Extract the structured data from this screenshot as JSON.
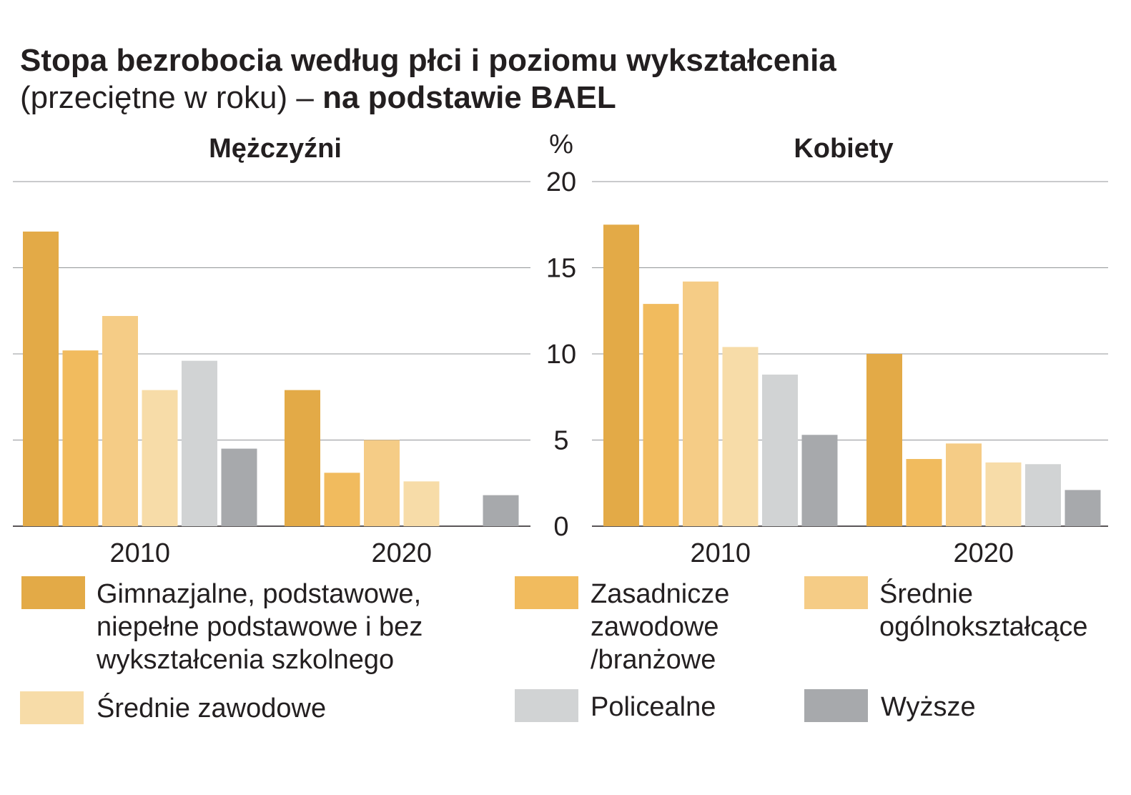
{
  "title": "Stopa bezrobocia według płci i poziomu wykształcenia",
  "subtitle_plain": "(przeciętne w roku) – ",
  "subtitle_bold": "na podstawie BAEL",
  "chart_data": {
    "type": "bar",
    "y_unit": "%",
    "ylim": [
      0,
      20
    ],
    "yticks": [
      "0",
      "5",
      "10",
      "15",
      "20"
    ],
    "grid": true,
    "legend_position": "bottom",
    "panels": [
      {
        "title": "Mężczyźni",
        "categories": [
          "2010",
          "2020"
        ],
        "series": [
          {
            "name": "Gimnazjalne, podstawowe, niepełne podstawowe i bez wykształcenia szkolnego",
            "values": [
              17.1,
              7.9
            ]
          },
          {
            "name": "Zasadnicze zawodowe /branżowe",
            "values": [
              10.2,
              3.1
            ]
          },
          {
            "name": "Średnie ogólnokształcące",
            "values": [
              12.2,
              5.0
            ]
          },
          {
            "name": "Średnie zawodowe",
            "values": [
              7.9,
              2.6
            ]
          },
          {
            "name": "Policealne",
            "values": [
              9.6,
              0
            ]
          },
          {
            "name": "Wyższe",
            "values": [
              4.5,
              1.8
            ]
          }
        ]
      },
      {
        "title": "Kobiety",
        "categories": [
          "2010",
          "2020"
        ],
        "series": [
          {
            "name": "Gimnazjalne, podstawowe, niepełne podstawowe i bez wykształcenia szkolnego",
            "values": [
              17.5,
              10.0
            ]
          },
          {
            "name": "Zasadnicze zawodowe /branżowe",
            "values": [
              12.9,
              3.9
            ]
          },
          {
            "name": "Średnie ogólnokształcące",
            "values": [
              14.2,
              4.8
            ]
          },
          {
            "name": "Średnie zawodowe",
            "values": [
              10.4,
              3.7
            ]
          },
          {
            "name": "Policealne",
            "values": [
              8.8,
              3.6
            ]
          },
          {
            "name": "Wyższe",
            "values": [
              5.3,
              2.1
            ]
          }
        ]
      }
    ]
  },
  "colors": [
    "#e3aa47",
    "#f1bb5e",
    "#f5cc86",
    "#f7dca8",
    "#d1d3d4",
    "#a7a9ac"
  ],
  "legend": [
    {
      "label": "Gimnazjalne, podstawowe,\nniepełne podstawowe i bez\nwykształcenia szkolnego",
      "color": "#e3aa47"
    },
    {
      "label": "Zasadnicze\nzawodowe\n/branżowe",
      "color": "#f1bb5e"
    },
    {
      "label": "Średnie\nogólnokształcące",
      "color": "#f5cc86"
    },
    {
      "label": "Średnie zawodowe",
      "color": "#f7dca8"
    },
    {
      "label": "Policealne",
      "color": "#d1d3d4"
    },
    {
      "label": "Wyższe",
      "color": "#a7a9ac"
    }
  ]
}
